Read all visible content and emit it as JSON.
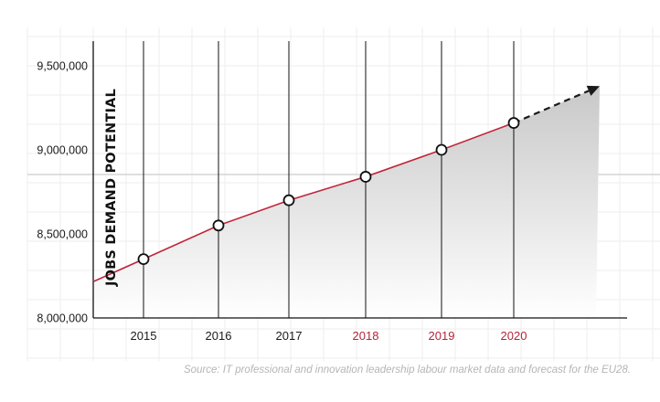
{
  "chart_data": {
    "type": "line",
    "ylabel": "JOBS DEMAND POTENTIAL",
    "xlabel": "",
    "title": "",
    "categories": [
      "2015",
      "2016",
      "2017",
      "2018",
      "2019",
      "2020"
    ],
    "forecast_categories": [
      "2018",
      "2019",
      "2020"
    ],
    "series": [
      {
        "values": [
          8350000,
          8550000,
          8700000,
          8840000,
          9000000,
          9160000
        ]
      }
    ],
    "ylim": [
      8000000,
      9500000
    ],
    "yticks": [
      8000000,
      8500000,
      9000000,
      9500000
    ],
    "ytick_labels": [
      "8,000,000",
      "8,500,000",
      "9,000,000",
      "9,500,000"
    ],
    "trend_direction": "up",
    "source": "Source: IT professional and innovation leadership labour market data and forecast for the EU28."
  },
  "colors": {
    "line": "#c0253a",
    "forecast_label": "#b5243a",
    "tick_label": "#1a1a1a",
    "arrow": "#1a1a1a",
    "area_top": "#c8c8c8",
    "area_bottom": "#ffffff",
    "source": "#b5b5b5"
  }
}
